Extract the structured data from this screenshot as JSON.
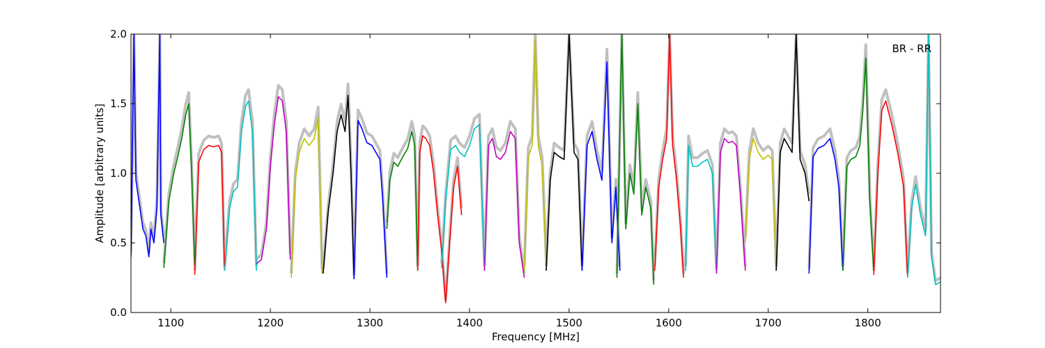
{
  "chart_data": {
    "type": "line",
    "xlabel": "Frequency [MHz]",
    "ylabel": "Amplitude [arbitrary units]",
    "annotation": "BR - RR",
    "xlim": [
      1060,
      1873
    ],
    "ylim": [
      0.0,
      2.0
    ],
    "x_ticks": [
      "1100",
      "1200",
      "1300",
      "1400",
      "1500",
      "1600",
      "1700",
      "1800"
    ],
    "y_ticks": [
      "0.0",
      "0.5",
      "1.0",
      "1.5",
      "2.0"
    ],
    "grid": false,
    "background_color": "#c0c0c0",
    "series_colors": [
      "#0000ff",
      "#008000",
      "#ff0000",
      "#00bfbf",
      "#bf00bf",
      "#bfbf00",
      "#000000"
    ],
    "series": [
      {
        "color": "#0000ff",
        "x": [
          1060,
          1063,
          1065,
          1068,
          1072,
          1075,
          1078,
          1080,
          1083,
          1086,
          1089,
          1090,
          1093
        ],
        "y": [
          0.4,
          2.0,
          0.95,
          0.8,
          0.6,
          0.55,
          0.4,
          0.6,
          0.5,
          0.75,
          2.0,
          0.7,
          0.5
        ]
      },
      {
        "color": "#008000",
        "x": [
          1093,
          1098,
          1103,
          1107,
          1111,
          1115,
          1118,
          1121,
          1124
        ],
        "y": [
          0.32,
          0.8,
          1.0,
          1.12,
          1.25,
          1.42,
          1.5,
          1.0,
          0.34
        ]
      },
      {
        "color": "#ff0000",
        "x": [
          1124,
          1128,
          1133,
          1138,
          1143,
          1148,
          1151,
          1154
        ],
        "y": [
          0.27,
          1.08,
          1.17,
          1.2,
          1.19,
          1.2,
          1.15,
          0.3
        ]
      },
      {
        "color": "#00bfbf",
        "x": [
          1154,
          1159,
          1163,
          1167,
          1171,
          1175,
          1178,
          1182,
          1186
        ],
        "y": [
          0.3,
          0.75,
          0.87,
          0.9,
          1.3,
          1.48,
          1.52,
          1.3,
          0.3
        ]
      },
      {
        "color": "#bf00bf",
        "x": [
          1186,
          1191,
          1196,
          1200,
          1204,
          1208,
          1212,
          1216,
          1220
        ],
        "y": [
          0.35,
          0.38,
          0.6,
          1.05,
          1.35,
          1.55,
          1.52,
          1.3,
          0.38
        ]
      },
      {
        "color": "#bfbf00",
        "x": [
          1221,
          1225,
          1229,
          1234,
          1239,
          1244,
          1248,
          1252
        ],
        "y": [
          0.25,
          0.95,
          1.15,
          1.25,
          1.2,
          1.25,
          1.4,
          0.28
        ]
      },
      {
        "color": "#000000",
        "x": [
          1253,
          1258,
          1263,
          1267,
          1271,
          1275,
          1278,
          1281,
          1284
        ],
        "y": [
          0.28,
          0.72,
          1.0,
          1.3,
          1.42,
          1.3,
          1.56,
          1.0,
          0.24
        ]
      },
      {
        "color": "#0000ff",
        "x": [
          1284,
          1288,
          1292,
          1297,
          1302,
          1306,
          1310,
          1313,
          1317
        ],
        "y": [
          0.24,
          1.38,
          1.32,
          1.22,
          1.2,
          1.15,
          1.1,
          0.8,
          0.25
        ]
      },
      {
        "color": "#008000",
        "x": [
          1317,
          1320,
          1324,
          1328,
          1333,
          1338,
          1342,
          1345,
          1348
        ],
        "y": [
          0.6,
          0.95,
          1.08,
          1.05,
          1.12,
          1.18,
          1.3,
          1.2,
          0.3
        ]
      },
      {
        "color": "#ff0000",
        "x": [
          1348,
          1350,
          1353,
          1356,
          1360,
          1364,
          1368,
          1372,
          1376,
          1380,
          1384,
          1388,
          1392
        ],
        "y": [
          0.3,
          1.15,
          1.27,
          1.25,
          1.2,
          1.0,
          0.7,
          0.45,
          0.07,
          0.5,
          0.9,
          1.05,
          0.7
        ]
      },
      {
        "color": "#00bfbf",
        "x": [
          1372,
          1376,
          1381,
          1386,
          1390,
          1395,
          1400,
          1405,
          1410,
          1415
        ],
        "y": [
          0.32,
          0.8,
          1.17,
          1.2,
          1.15,
          1.12,
          1.2,
          1.32,
          1.35,
          0.3
        ]
      },
      {
        "color": "#bf00bf",
        "x": [
          1415,
          1419,
          1423,
          1427,
          1431,
          1436,
          1441,
          1446,
          1450,
          1455
        ],
        "y": [
          0.3,
          1.2,
          1.25,
          1.12,
          1.1,
          1.15,
          1.3,
          1.25,
          0.5,
          0.25
        ]
      },
      {
        "color": "#bfbf00",
        "x": [
          1455,
          1459,
          1463,
          1466,
          1469,
          1473,
          1477
        ],
        "y": [
          0.3,
          1.12,
          1.2,
          1.97,
          1.2,
          1.05,
          0.35
        ]
      },
      {
        "color": "#000000",
        "x": [
          1477,
          1481,
          1485,
          1490,
          1495,
          1500,
          1505,
          1509,
          1513
        ],
        "y": [
          0.3,
          0.95,
          1.15,
          1.12,
          1.1,
          2.0,
          1.15,
          1.1,
          0.3
        ]
      },
      {
        "color": "#0000ff",
        "x": [
          1513,
          1518,
          1523,
          1528,
          1533,
          1538,
          1543,
          1547,
          1551
        ],
        "y": [
          0.3,
          1.2,
          1.3,
          1.1,
          0.95,
          1.8,
          0.5,
          0.9,
          0.3
        ]
      },
      {
        "color": "#008000",
        "x": [
          1548,
          1553,
          1557,
          1561,
          1565,
          1569,
          1573,
          1577,
          1582,
          1585
        ],
        "y": [
          0.25,
          2.0,
          0.6,
          1.0,
          0.85,
          1.5,
          0.7,
          0.9,
          0.75,
          0.2
        ]
      },
      {
        "color": "#ff0000",
        "x": [
          1586,
          1590,
          1594,
          1598,
          1601,
          1604,
          1608,
          1612,
          1615
        ],
        "y": [
          0.3,
          0.9,
          1.1,
          1.25,
          2.0,
          1.2,
          0.95,
          0.6,
          0.25
        ]
      },
      {
        "color": "#00bfbf",
        "x": [
          1617,
          1620,
          1624,
          1629,
          1634,
          1639,
          1644,
          1648
        ],
        "y": [
          0.3,
          1.2,
          1.05,
          1.05,
          1.08,
          1.1,
          1.0,
          0.28
        ]
      },
      {
        "color": "#bf00bf",
        "x": [
          1648,
          1652,
          1656,
          1660,
          1664,
          1668,
          1672,
          1677
        ],
        "y": [
          0.28,
          1.15,
          1.25,
          1.22,
          1.23,
          1.2,
          0.85,
          0.3
        ]
      },
      {
        "color": "#bfbf00",
        "x": [
          1677,
          1681,
          1685,
          1690,
          1695,
          1700,
          1704,
          1708
        ],
        "y": [
          0.5,
          1.1,
          1.25,
          1.15,
          1.1,
          1.13,
          1.1,
          0.3
        ]
      },
      {
        "color": "#000000",
        "x": [
          1708,
          1712,
          1716,
          1720,
          1724,
          1728,
          1732,
          1737,
          1741
        ],
        "y": [
          0.3,
          1.15,
          1.25,
          1.2,
          1.15,
          2.0,
          1.1,
          1.0,
          0.8
        ]
      },
      {
        "color": "#0000ff",
        "x": [
          1741,
          1745,
          1750,
          1756,
          1762,
          1767,
          1771,
          1775
        ],
        "y": [
          0.28,
          1.12,
          1.18,
          1.2,
          1.25,
          1.1,
          0.9,
          0.3
        ]
      },
      {
        "color": "#008000",
        "x": [
          1775,
          1779,
          1783,
          1788,
          1792,
          1795,
          1798,
          1802,
          1806
        ],
        "y": [
          0.3,
          1.05,
          1.1,
          1.12,
          1.2,
          1.45,
          1.83,
          0.8,
          0.3
        ]
      },
      {
        "color": "#ff0000",
        "x": [
          1806,
          1810,
          1814,
          1818,
          1824,
          1830,
          1836,
          1840
        ],
        "y": [
          0.27,
          1.0,
          1.45,
          1.52,
          1.35,
          1.15,
          0.9,
          0.25
        ]
      },
      {
        "color": "#00bfbf",
        "x": [
          1840,
          1844,
          1848,
          1853,
          1858,
          1861,
          1864,
          1868,
          1873
        ],
        "y": [
          0.25,
          0.75,
          0.92,
          0.7,
          0.55,
          2.0,
          0.4,
          0.2,
          0.22
        ]
      }
    ]
  }
}
